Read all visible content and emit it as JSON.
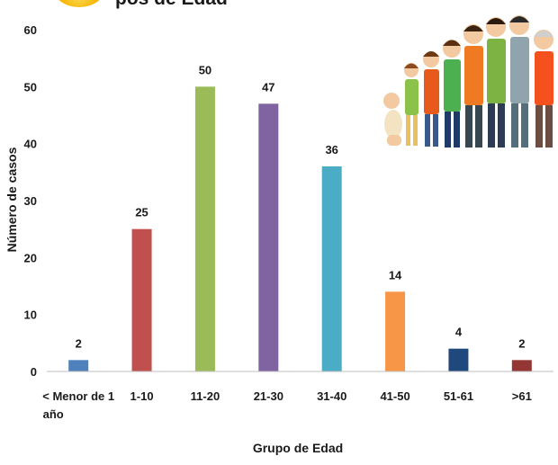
{
  "chart_data": {
    "type": "bar",
    "title": "…pos de Edad (partially visible)",
    "xlabel": "Grupo de Edad",
    "ylabel": "Número de casos",
    "ylim": [
      0,
      60
    ],
    "yticks": [
      0,
      10,
      20,
      30,
      40,
      50,
      60
    ],
    "categories": [
      "< Menor de 1 año",
      "1-10",
      "11-20",
      "21-30",
      "31-40",
      "41-50",
      "51-61",
      ">61"
    ],
    "values": [
      2,
      25,
      50,
      47,
      36,
      14,
      4,
      2
    ],
    "colors": [
      "#4f81bd",
      "#c0504d",
      "#9bbb59",
      "#8064a2",
      "#4bacc6",
      "#f79646",
      "#1f497d",
      "#943634"
    ],
    "data_labels": true,
    "grid": false,
    "legend": "none"
  },
  "illustration": {
    "icon": "family-age-progression-icon"
  }
}
